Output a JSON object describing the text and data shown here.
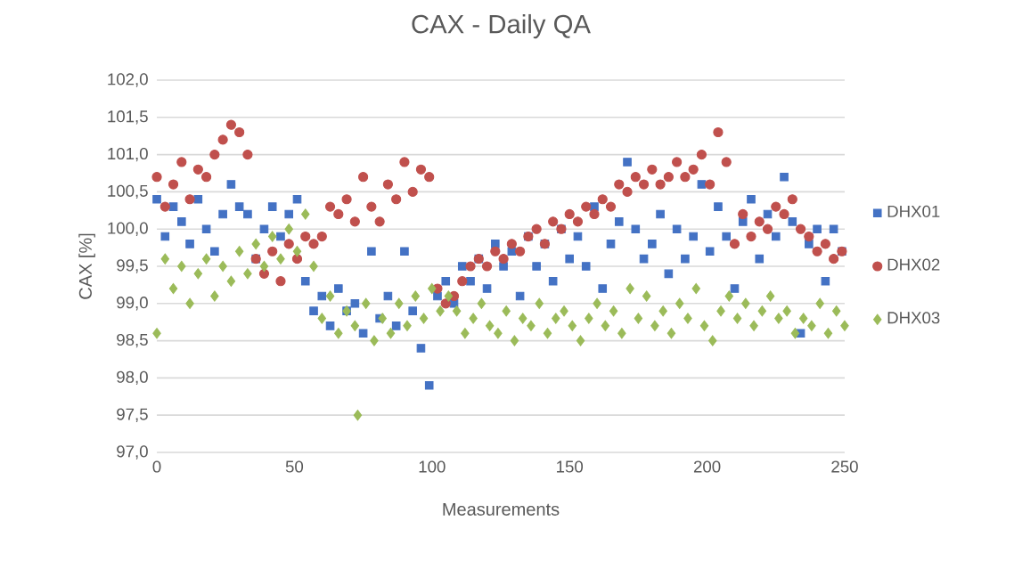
{
  "chart_data": {
    "type": "scatter",
    "title": "CAX - Daily QA",
    "xlabel": "Measurements",
    "ylabel": "CAX [%]",
    "xlim": [
      0,
      250
    ],
    "xticks": [
      0,
      50,
      100,
      150,
      200,
      250
    ],
    "ylim": [
      97.0,
      102.0
    ],
    "yticks": [
      {
        "value": 97.0,
        "label": "97,0"
      },
      {
        "value": 97.5,
        "label": "97,5"
      },
      {
        "value": 98.0,
        "label": "98,0"
      },
      {
        "value": 98.5,
        "label": "98,5"
      },
      {
        "value": 99.0,
        "label": "99,0"
      },
      {
        "value": 99.5,
        "label": "99,5"
      },
      {
        "value": 100.0,
        "label": "100,0"
      },
      {
        "value": 100.5,
        "label": "100,5"
      },
      {
        "value": 101.0,
        "label": "101,0"
      },
      {
        "value": 101.5,
        "label": "101,5"
      },
      {
        "value": 102.0,
        "label": "102,0"
      }
    ],
    "grid": "y",
    "legend": "right",
    "series": [
      {
        "name": "DHX01",
        "color": "#4472c4",
        "marker": "square",
        "x": [
          0,
          3,
          6,
          9,
          12,
          15,
          18,
          21,
          24,
          27,
          30,
          33,
          36,
          39,
          42,
          45,
          48,
          51,
          54,
          57,
          60,
          63,
          66,
          69,
          72,
          75,
          78,
          81,
          84,
          87,
          90,
          93,
          96,
          99,
          102,
          105,
          108,
          111,
          114,
          117,
          120,
          123,
          126,
          129,
          132,
          135,
          138,
          141,
          144,
          147,
          150,
          153,
          156,
          159,
          162,
          165,
          168,
          171,
          174,
          177,
          180,
          183,
          186,
          189,
          192,
          195,
          198,
          201,
          204,
          207,
          210,
          213,
          216,
          219,
          222,
          225,
          228,
          231,
          234,
          237,
          240,
          243,
          246,
          249
        ],
        "values": [
          100.4,
          99.9,
          100.3,
          100.1,
          99.8,
          100.4,
          100.0,
          99.7,
          100.2,
          100.6,
          100.3,
          100.2,
          99.6,
          100.0,
          100.3,
          99.9,
          100.2,
          100.4,
          99.3,
          98.9,
          99.1,
          98.7,
          99.2,
          98.9,
          99.0,
          98.6,
          99.7,
          98.8,
          99.1,
          98.7,
          99.7,
          98.9,
          98.4,
          97.9,
          99.1,
          99.3,
          99.0,
          99.5,
          99.3,
          99.6,
          99.2,
          99.8,
          99.5,
          99.7,
          99.1,
          99.9,
          99.5,
          99.8,
          99.3,
          100.0,
          99.6,
          99.9,
          99.5,
          100.3,
          99.2,
          99.8,
          100.1,
          100.9,
          100.0,
          99.6,
          99.8,
          100.2,
          99.4,
          100.0,
          99.6,
          99.9,
          100.6,
          99.7,
          100.3,
          99.9,
          99.2,
          100.1,
          100.4,
          99.6,
          100.2,
          99.9,
          100.7,
          100.1,
          98.6,
          99.8,
          100.0,
          99.3,
          100.0,
          99.7
        ]
      },
      {
        "name": "DHX02",
        "color": "#c0504d",
        "marker": "circle",
        "x": [
          0,
          3,
          6,
          9,
          12,
          15,
          18,
          21,
          24,
          27,
          30,
          33,
          36,
          39,
          42,
          45,
          48,
          51,
          54,
          57,
          60,
          63,
          66,
          69,
          72,
          75,
          78,
          81,
          84,
          87,
          90,
          93,
          96,
          99,
          102,
          105,
          108,
          111,
          114,
          117,
          120,
          123,
          126,
          129,
          132,
          135,
          138,
          141,
          144,
          147,
          150,
          153,
          156,
          159,
          162,
          165,
          168,
          171,
          174,
          177,
          180,
          183,
          186,
          189,
          192,
          195,
          198,
          201,
          204,
          207,
          210,
          213,
          216,
          219,
          222,
          225,
          228,
          231,
          234,
          237,
          240,
          243,
          246,
          249
        ],
        "values": [
          100.7,
          100.3,
          100.6,
          100.9,
          100.4,
          100.8,
          100.7,
          101.0,
          101.2,
          101.4,
          101.3,
          101.0,
          99.6,
          99.4,
          99.7,
          99.3,
          99.8,
          99.6,
          99.9,
          99.8,
          99.9,
          100.3,
          100.2,
          100.4,
          100.1,
          100.7,
          100.3,
          100.1,
          100.6,
          100.4,
          100.9,
          100.5,
          100.8,
          100.7,
          99.2,
          99.0,
          99.1,
          99.3,
          99.5,
          99.6,
          99.5,
          99.7,
          99.6,
          99.8,
          99.7,
          99.9,
          100.0,
          99.8,
          100.1,
          100.0,
          100.2,
          100.1,
          100.3,
          100.2,
          100.4,
          100.3,
          100.6,
          100.5,
          100.7,
          100.6,
          100.8,
          100.6,
          100.7,
          100.9,
          100.7,
          100.8,
          101.0,
          100.6,
          101.3,
          100.9,
          99.8,
          100.2,
          99.9,
          100.1,
          100.0,
          100.3,
          100.2,
          100.4,
          100.0,
          99.9,
          99.7,
          99.8,
          99.6,
          99.7
        ]
      },
      {
        "name": "DHX03",
        "color": "#9bbb59",
        "marker": "diamond",
        "x": [
          0,
          3,
          6,
          9,
          12,
          15,
          18,
          21,
          24,
          27,
          30,
          33,
          36,
          39,
          42,
          45,
          48,
          51,
          54,
          57,
          60,
          63,
          66,
          69,
          72,
          73,
          76,
          79,
          82,
          85,
          88,
          91,
          94,
          97,
          100,
          103,
          106,
          109,
          112,
          115,
          118,
          121,
          124,
          127,
          130,
          133,
          136,
          139,
          142,
          145,
          148,
          151,
          154,
          157,
          160,
          163,
          166,
          169,
          172,
          175,
          178,
          181,
          184,
          187,
          190,
          193,
          196,
          199,
          202,
          205,
          208,
          211,
          214,
          217,
          220,
          223,
          226,
          229,
          232,
          235,
          238,
          241,
          244,
          247,
          250
        ],
        "values": [
          98.6,
          99.6,
          99.2,
          99.5,
          99.0,
          99.4,
          99.6,
          99.1,
          99.5,
          99.3,
          99.7,
          99.4,
          99.8,
          99.5,
          99.9,
          99.6,
          100.0,
          99.7,
          100.2,
          99.5,
          98.8,
          99.1,
          98.6,
          98.9,
          98.7,
          97.5,
          99.0,
          98.5,
          98.8,
          98.6,
          99.0,
          98.7,
          99.1,
          98.8,
          99.2,
          98.9,
          99.1,
          98.9,
          98.6,
          98.8,
          99.0,
          98.7,
          98.6,
          98.9,
          98.5,
          98.8,
          98.7,
          99.0,
          98.6,
          98.8,
          98.9,
          98.7,
          98.5,
          98.8,
          99.0,
          98.7,
          98.9,
          98.6,
          99.2,
          98.8,
          99.1,
          98.7,
          98.9,
          98.6,
          99.0,
          98.8,
          99.2,
          98.7,
          98.5,
          98.9,
          99.1,
          98.8,
          99.0,
          98.7,
          98.9,
          99.1,
          98.8,
          98.9,
          98.6,
          98.8,
          98.7,
          99.0,
          98.6,
          98.9,
          98.7
        ]
      }
    ]
  }
}
